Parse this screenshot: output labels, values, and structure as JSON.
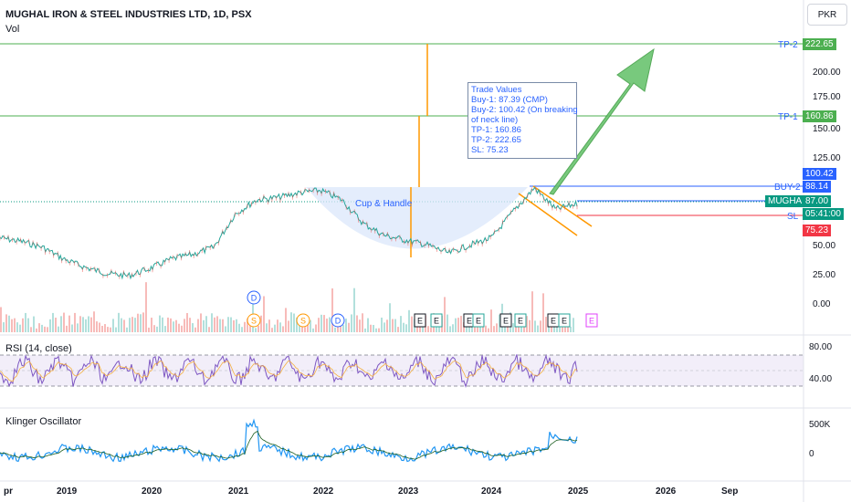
{
  "header": {
    "title": "MUGHAL IRON & STEEL INDUSTRIES LTD, 1D, PSX",
    "volume_label": "Vol",
    "currency": "PKR"
  },
  "rsi_label": "RSI (14, close)",
  "klinger_label": "Klinger Oscillator",
  "annotation": {
    "title": "Trade Values",
    "lines": [
      "Buy-1: 87.39 (CMP)",
      "Buy-2: 100.42 (On breaking",
      "of neck line)",
      "TP-1: 160.86",
      "TP-2: 222.65",
      "SL: 75.23"
    ]
  },
  "pattern_label": "Cup & Handle",
  "levels": {
    "tp2": {
      "label": "TP-2",
      "value": "222.65",
      "color": "#4caf50"
    },
    "tp1": {
      "label": "TP-1",
      "value": "160.86",
      "color": "#4caf50"
    },
    "buy2": {
      "label": "BUY-2",
      "value": "100.42",
      "color": "#2962ff"
    },
    "buy2_line_value": "88.14",
    "symbol": {
      "label": "MUGHAL",
      "value": "87.00",
      "countdown": "05:41:00",
      "color": "#089981"
    },
    "sl": {
      "label": "SL",
      "value": "75.23",
      "color": "#f23645"
    }
  },
  "price_axis": [
    "200.00",
    "175.00",
    "150.00",
    "125.00",
    "50.00",
    "25.00",
    "0.00"
  ],
  "rsi_axis": [
    "80.00",
    "40.00"
  ],
  "klinger_axis": [
    "500K",
    "0"
  ],
  "time_axis": [
    "pr",
    "2019",
    "2020",
    "2021",
    "2022",
    "2023",
    "2024",
    "2025",
    "2026",
    "Sep"
  ],
  "events": [
    "D",
    "S",
    "S",
    "D",
    "E",
    "E",
    "E",
    "E",
    "E",
    "E",
    "E",
    "E"
  ],
  "chart_data": {
    "type": "line",
    "title": "MUGHAL IRON & STEEL INDUSTRIES LTD, 1D, PSX",
    "x": [
      "2018-04",
      "2018-07",
      "2018-10",
      "2019-01",
      "2019-04",
      "2019-07",
      "2019-10",
      "2020-01",
      "2020-04",
      "2020-07",
      "2020-10",
      "2021-01",
      "2021-04",
      "2021-07",
      "2021-10",
      "2022-01",
      "2022-04",
      "2022-07",
      "2022-10",
      "2023-01",
      "2023-04",
      "2023-07",
      "2023-10",
      "2024-01",
      "2024-04",
      "2024-07",
      "2024-10",
      "2025-01"
    ],
    "series": [
      {
        "values": [
          58,
          55,
          50,
          40,
          33,
          28,
          26,
          32,
          40,
          44,
          50,
          78,
          90,
          92,
          96,
          98,
          90,
          70,
          60,
          56,
          52,
          45,
          52,
          58,
          80,
          100,
          82,
          87
        ]
      }
    ],
    "levels": {
      "TP-2": 222.65,
      "TP-1": 160.86,
      "BUY-2": 100.42,
      "Buy-1": 87.39,
      "SL": 75.23
    },
    "ylim": [
      0,
      225
    ]
  }
}
